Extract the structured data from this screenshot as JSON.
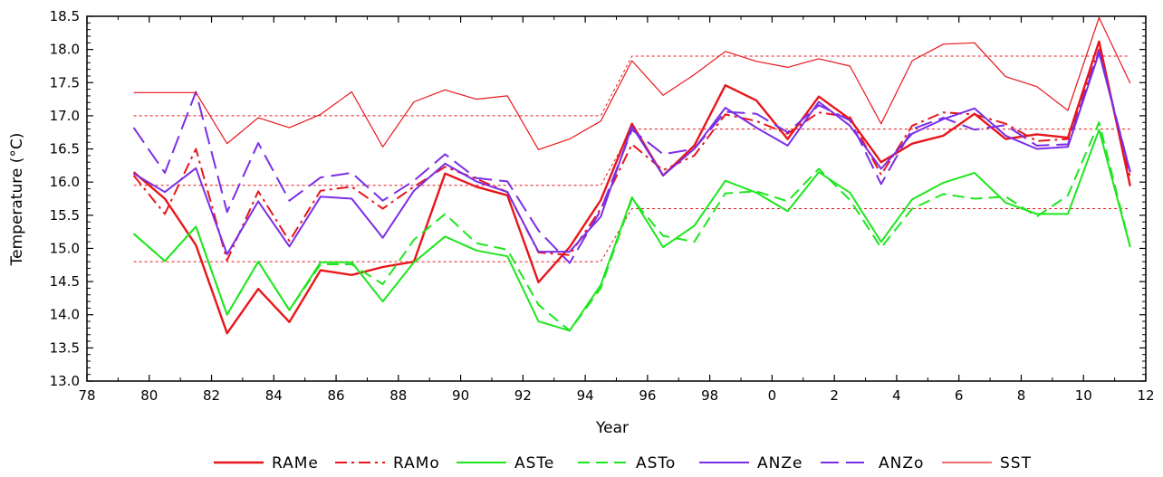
{
  "chart_data": {
    "type": "line",
    "xlabel": "Year",
    "ylabel": "Temperature (°C)",
    "xlim": [
      1978,
      2012
    ],
    "ylim": [
      13.0,
      18.5
    ],
    "grid": false,
    "legend_position": "bottom",
    "x_ticks": [
      1978,
      1980,
      1982,
      1984,
      1986,
      1988,
      1990,
      1992,
      1994,
      1996,
      1998,
      2000,
      2002,
      2004,
      2006,
      2008,
      2010,
      2012
    ],
    "x_tick_labels": [
      "78",
      "80",
      "82",
      "84",
      "86",
      "88",
      "90",
      "92",
      "94",
      "96",
      "98",
      "0",
      "2",
      "4",
      "6",
      "8",
      "10",
      "12"
    ],
    "y_ticks": [
      13.0,
      13.5,
      14.0,
      14.5,
      15.0,
      15.5,
      16.0,
      16.5,
      17.0,
      17.5,
      18.0,
      18.5
    ],
    "y_tick_labels": [
      "13.0",
      "13.5",
      "14.0",
      "14.5",
      "15.0",
      "15.5",
      "16.0",
      "16.5",
      "17.0",
      "17.5",
      "18.0",
      "18.5"
    ],
    "x": [
      1979.5,
      1980.5,
      1981.5,
      1982.5,
      1983.5,
      1984.5,
      1985.5,
      1986.5,
      1987.5,
      1988.5,
      1989.5,
      1990.5,
      1991.5,
      1992.5,
      1993.5,
      1994.5,
      1995.5,
      1996.5,
      1997.5,
      1998.5,
      1999.5,
      2000.5,
      2001.5,
      2002.5,
      2003.5,
      2004.5,
      2005.5,
      2006.5,
      2007.5,
      2008.5,
      2009.5,
      2010.5,
      2011.5
    ],
    "series": [
      {
        "name": "RAMe",
        "color": "#e8161b",
        "dash": "solid",
        "width": 2.4,
        "values": [
          16.15,
          15.75,
          15.05,
          13.72,
          14.39,
          13.89,
          14.67,
          14.6,
          14.72,
          14.8,
          16.13,
          15.93,
          15.8,
          14.49,
          15.02,
          15.73,
          16.88,
          16.1,
          16.55,
          17.46,
          17.23,
          16.65,
          17.29,
          16.95,
          16.3,
          16.58,
          16.7,
          17.03,
          16.65,
          16.72,
          16.67,
          18.12,
          15.94
        ]
      },
      {
        "name": "RAMo",
        "color": "#e8161b",
        "dash": "dashdot",
        "width": 2.0,
        "values": [
          16.1,
          15.52,
          16.5,
          14.82,
          15.86,
          15.11,
          15.87,
          15.93,
          15.6,
          15.93,
          16.23,
          16.05,
          15.85,
          14.94,
          14.9,
          15.6,
          16.57,
          16.18,
          16.4,
          17.02,
          16.92,
          16.73,
          17.05,
          16.98,
          16.11,
          16.85,
          17.05,
          17.02,
          16.88,
          16.62,
          16.65,
          18.0,
          16.07
        ]
      },
      {
        "name": "ASTe",
        "color": "#1ee61e",
        "dash": "solid",
        "width": 2.0,
        "values": [
          15.22,
          14.81,
          15.33,
          14.0,
          14.8,
          14.07,
          14.79,
          14.79,
          14.2,
          14.79,
          15.18,
          14.97,
          14.88,
          13.9,
          13.76,
          14.45,
          15.77,
          15.02,
          15.34,
          16.02,
          15.84,
          15.56,
          16.15,
          15.84,
          15.1,
          15.74,
          15.99,
          16.14,
          15.69,
          15.52,
          15.52,
          16.79,
          15.02
        ]
      },
      {
        "name": "ASTo",
        "color": "#1ee61e",
        "dash": "dashed",
        "width": 2.0,
        "values": [
          15.22,
          14.81,
          15.33,
          14.0,
          14.8,
          14.07,
          14.76,
          14.76,
          14.46,
          15.13,
          15.52,
          15.08,
          14.98,
          14.15,
          13.76,
          14.4,
          15.75,
          15.19,
          15.1,
          15.83,
          15.86,
          15.71,
          16.2,
          15.73,
          15.01,
          15.6,
          15.82,
          15.75,
          15.78,
          15.48,
          15.8,
          16.9,
          15.02
        ]
      },
      {
        "name": "ANZe",
        "color": "#7b2ee6",
        "dash": "solid",
        "width": 2.0,
        "values": [
          16.13,
          15.85,
          16.21,
          14.91,
          15.71,
          15.03,
          15.78,
          15.75,
          15.16,
          15.87,
          16.28,
          16.01,
          15.85,
          14.95,
          14.95,
          15.48,
          16.84,
          16.1,
          16.5,
          17.12,
          16.82,
          16.55,
          17.21,
          16.85,
          16.2,
          16.73,
          16.95,
          17.11,
          16.7,
          16.5,
          16.53,
          17.95,
          16.15
        ]
      },
      {
        "name": "ANZo",
        "color": "#7b2ee6",
        "dash": "longdash",
        "width": 2.0,
        "values": [
          16.82,
          16.14,
          17.36,
          15.55,
          16.59,
          15.72,
          16.07,
          16.14,
          15.72,
          16.02,
          16.42,
          16.06,
          16.01,
          15.27,
          14.78,
          15.58,
          16.79,
          16.42,
          16.5,
          17.06,
          17.03,
          16.75,
          17.16,
          16.93,
          15.97,
          16.8,
          16.97,
          16.79,
          16.86,
          16.55,
          16.57,
          17.98,
          16.15
        ]
      },
      {
        "name": "SST",
        "color": "#e8161b",
        "dash": "solid",
        "width": 1.2,
        "values": [
          17.35,
          17.35,
          17.35,
          16.58,
          16.97,
          16.82,
          17.02,
          17.36,
          16.53,
          17.21,
          17.39,
          17.25,
          17.3,
          16.49,
          16.65,
          16.92,
          17.83,
          17.31,
          17.62,
          17.97,
          17.82,
          17.73,
          17.86,
          17.75,
          16.88,
          17.83,
          18.08,
          18.1,
          17.59,
          17.44,
          17.08,
          18.48,
          17.49
        ]
      }
    ],
    "reference_lines": [
      {
        "color": "#e8161b",
        "segments": [
          [
            [
              1979.5,
              17.0
            ],
            [
              1994.5,
              17.0
            ],
            [
              1995.5,
              17.9
            ],
            [
              2011.5,
              17.9
            ]
          ]
        ]
      },
      {
        "color": "#e8161b",
        "segments": [
          [
            [
              1979.5,
              15.95
            ],
            [
              1994.5,
              15.95
            ],
            [
              1995.5,
              16.8
            ],
            [
              2011.5,
              16.8
            ]
          ]
        ]
      },
      {
        "color": "#e8161b",
        "segments": [
          [
            [
              1979.5,
              14.8
            ],
            [
              1994.5,
              14.8
            ],
            [
              1995.5,
              15.6
            ],
            [
              2011.5,
              15.6
            ]
          ]
        ]
      }
    ]
  }
}
